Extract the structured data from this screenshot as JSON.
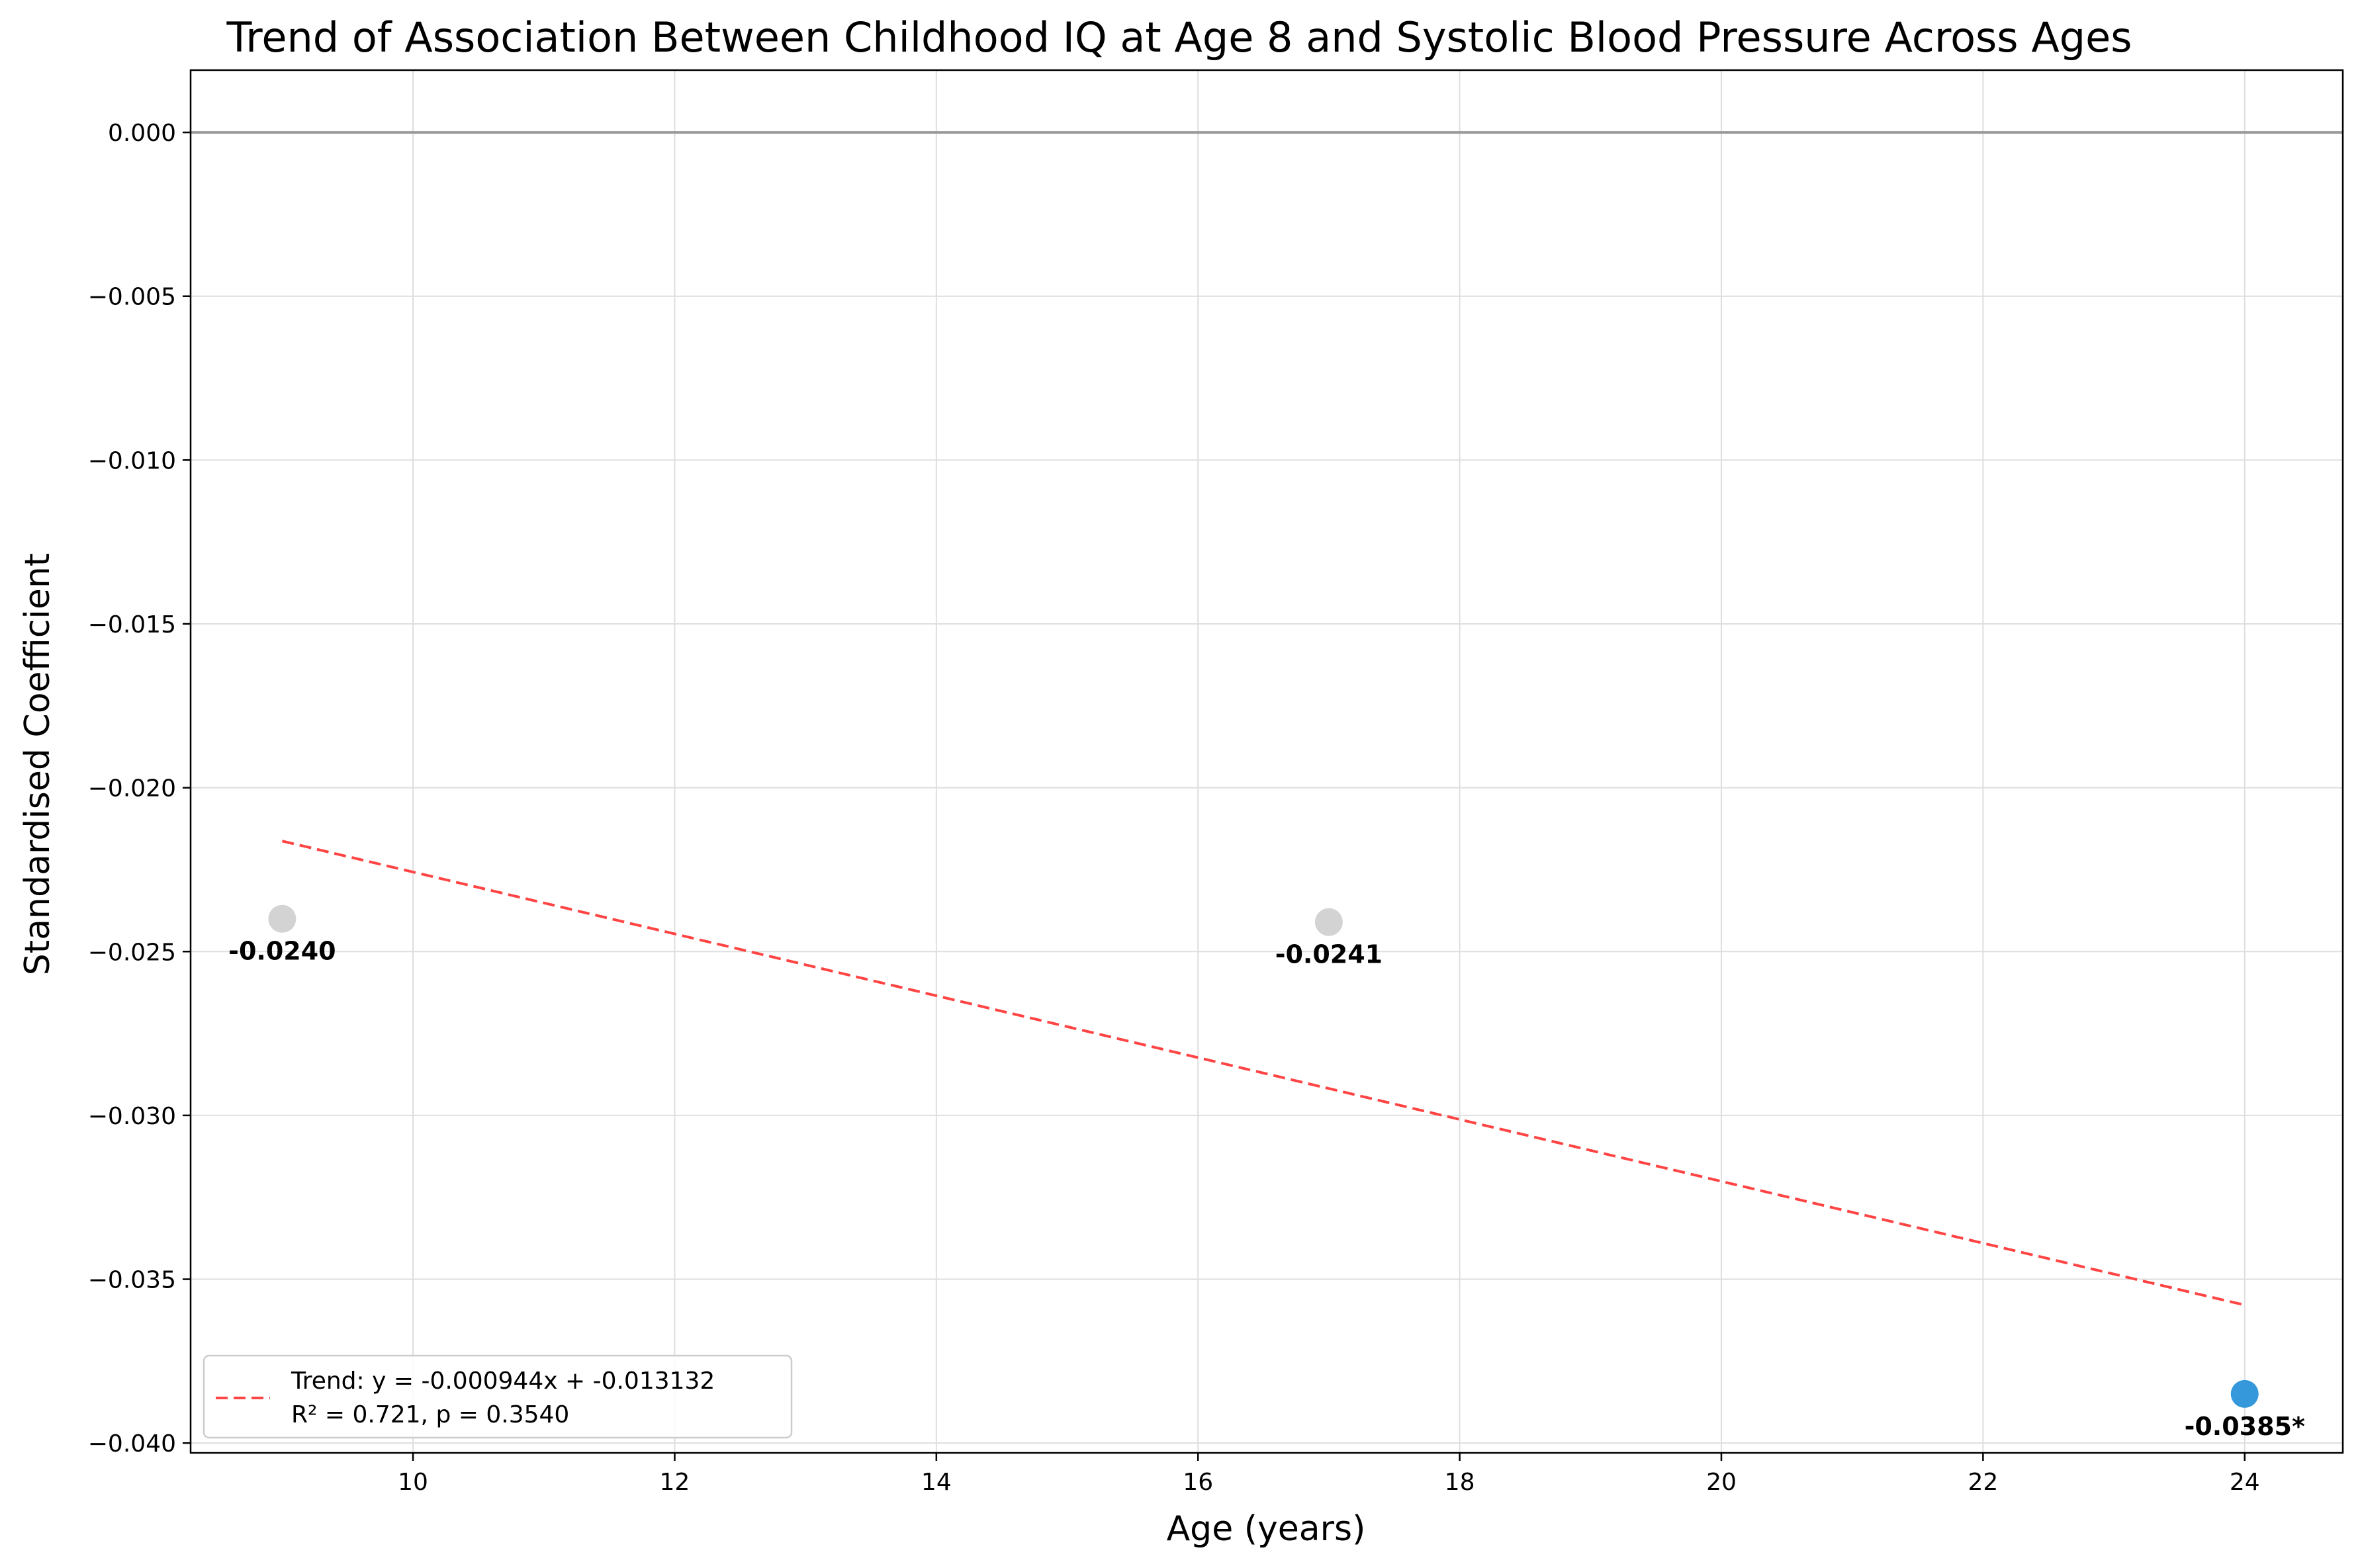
{
  "chart_data": {
    "type": "scatter",
    "title": "Trend of Association Between Childhood IQ at Age 8 and Systolic Blood Pressure Across Ages",
    "xlabel": "Age (years)",
    "ylabel": "Standardised Coefficient",
    "xlim": [
      8.3,
      24.75
    ],
    "ylim": [
      -0.0403,
      0.0019
    ],
    "xticks": [
      10,
      12,
      14,
      16,
      18,
      20,
      22,
      24
    ],
    "yticks": [
      0.0,
      -0.005,
      -0.01,
      -0.015,
      -0.02,
      -0.025,
      -0.03,
      -0.035,
      -0.04
    ],
    "xtick_labels": [
      "10",
      "12",
      "14",
      "16",
      "18",
      "20",
      "22",
      "24"
    ],
    "ytick_labels": [
      "0.000",
      "−0.005",
      "−0.010",
      "−0.015",
      "−0.020",
      "−0.025",
      "−0.030",
      "−0.035",
      "−0.040"
    ],
    "grid": true,
    "reference_line": {
      "y": 0.0,
      "color": "#999999"
    },
    "points": [
      {
        "x": 9,
        "y": -0.024,
        "label": "-0.0240",
        "significant": false,
        "color": "#d3d3d3"
      },
      {
        "x": 17,
        "y": -0.0241,
        "label": "-0.0241",
        "significant": false,
        "color": "#d3d3d3"
      },
      {
        "x": 24,
        "y": -0.0385,
        "label": "-0.0385*",
        "significant": true,
        "color": "#3498db"
      }
    ],
    "trend": {
      "slope": -0.000944,
      "intercept": -0.013132,
      "x_range": [
        9,
        24
      ],
      "color": "#ff4444",
      "style": "dashed"
    },
    "legend": {
      "position": "lower-left",
      "entries": [
        {
          "line1": "Trend: y = -0.000944x + -0.013132",
          "line2": "R² = 0.721, p = 0.3540"
        }
      ]
    }
  }
}
